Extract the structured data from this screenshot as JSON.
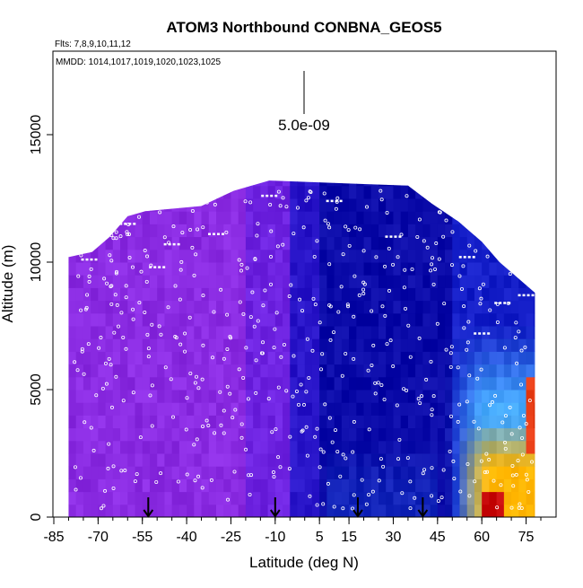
{
  "chart_data": {
    "type": "heatmap",
    "title": "ATOM3 Northbound CONBNA_GEOS5",
    "flights_note": "Flts: 7,8,9,10,11,12",
    "dates_note": "MMDD: 1014,1017,1019,1020,1023,1025",
    "xlabel": "Latitude (deg N)",
    "ylabel": "Altitude (m)",
    "xlim": [
      -85,
      80
    ],
    "ylim": [
      0,
      17500
    ],
    "x_ticks": [
      -85,
      -70,
      -55,
      -40,
      -25,
      -10,
      5,
      15,
      30,
      45,
      60,
      75
    ],
    "y_ticks": [
      0,
      5000,
      10000,
      15000
    ],
    "scale_bar_label": "5.0e-09",
    "data_extent": {
      "lat_min": -80,
      "lat_max": 78,
      "top_altitude_profile": [
        {
          "lat": -80,
          "alt": 10200
        },
        {
          "lat": -72,
          "alt": 10400
        },
        {
          "lat": -66,
          "alt": 11000
        },
        {
          "lat": -60,
          "alt": 11800
        },
        {
          "lat": -54,
          "alt": 12000
        },
        {
          "lat": -35,
          "alt": 12200
        },
        {
          "lat": -24,
          "alt": 12800
        },
        {
          "lat": -12,
          "alt": 13200
        },
        {
          "lat": 35,
          "alt": 13000
        },
        {
          "lat": 43,
          "alt": 12300
        },
        {
          "lat": 52,
          "alt": 11600
        },
        {
          "lat": 60,
          "alt": 10800
        },
        {
          "lat": 66,
          "alt": 10000
        },
        {
          "lat": 72,
          "alt": 9400
        },
        {
          "lat": 78,
          "alt": 8800
        }
      ]
    },
    "color_regions": [
      {
        "name": "purple",
        "color": "#8a2be2",
        "lat_range": [
          -80,
          -15
        ]
      },
      {
        "name": "violet-blue",
        "color": "#5a22e0",
        "lat_range": [
          -15,
          0
        ]
      },
      {
        "name": "dark-blue",
        "color": "#1a10c0",
        "lat_range": [
          0,
          10
        ]
      },
      {
        "name": "navy",
        "color": "#0a0aa8",
        "lat_range": [
          10,
          50
        ]
      },
      {
        "name": "light-blue",
        "color": "#4aa8ff",
        "lat_range": [
          50,
          78
        ],
        "alt_range": [
          0,
          6000
        ]
      },
      {
        "name": "yellow-orange",
        "color": "#ffb000",
        "lat_range": [
          55,
          78
        ],
        "alt_range": [
          0,
          3500
        ]
      },
      {
        "name": "red",
        "color": "#d01010",
        "lat_range": [
          62,
          66
        ],
        "alt_range": [
          0,
          1000
        ]
      }
    ],
    "flight_track_color": "#ffffff",
    "marker_arrows_lat": [
      -53,
      -10,
      18,
      40
    ]
  }
}
